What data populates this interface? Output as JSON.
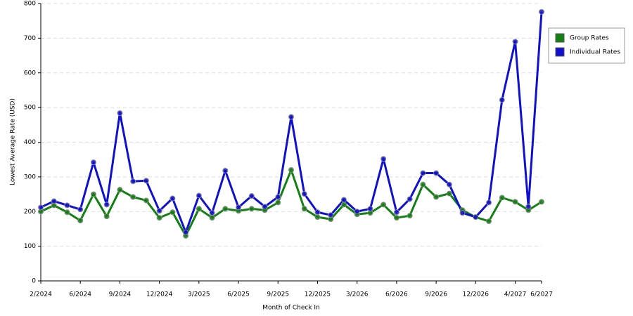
{
  "chart_data": {
    "type": "line",
    "x_label": "Month of Check In",
    "y_label": "Lowest Average Rate (USD)",
    "categories": [
      "2/2024",
      null,
      null,
      "6/2024",
      null,
      null,
      "9/2024",
      null,
      null,
      "12/2024",
      null,
      null,
      "3/2025",
      null,
      null,
      "6/2025",
      null,
      null,
      "9/2025",
      null,
      null,
      "12/2025",
      null,
      null,
      "3/2026",
      null,
      null,
      "6/2026",
      null,
      null,
      "9/2026",
      null,
      null,
      "12/2026",
      null,
      null,
      "4/2027",
      null,
      "6/2027"
    ],
    "series": [
      {
        "name": "Group Rates",
        "color": "#128012",
        "values": [
          200,
          218,
          198,
          174,
          250,
          186,
          263,
          242,
          232,
          182,
          198,
          130,
          208,
          182,
          208,
          202,
          208,
          204,
          226,
          320,
          208,
          184,
          178,
          220,
          192,
          196,
          220,
          182,
          188,
          278,
          242,
          252,
          204,
          184,
          172,
          240,
          228,
          204,
          228
        ]
      },
      {
        "name": "Individual Rates",
        "color": "#1010d0",
        "values": [
          212,
          230,
          218,
          206,
          342,
          220,
          484,
          287,
          289,
          202,
          238,
          140,
          246,
          196,
          318,
          212,
          245,
          214,
          242,
          473,
          251,
          198,
          190,
          234,
          200,
          208,
          352,
          198,
          236,
          311,
          311,
          278,
          196,
          184,
          226,
          522,
          690,
          214,
          776
        ]
      }
    ],
    "ylim": [
      0,
      800
    ],
    "yticks": [
      0,
      100,
      200,
      300,
      400,
      500,
      600,
      700,
      800
    ],
    "grid": true,
    "legend": "right"
  }
}
